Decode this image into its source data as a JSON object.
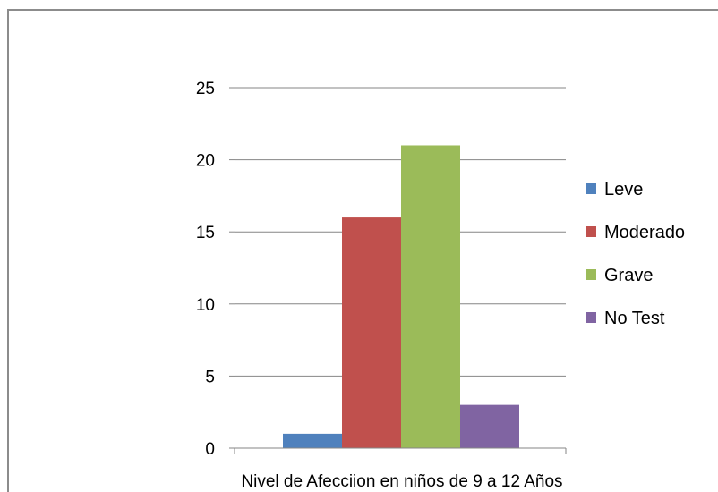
{
  "chart_data": {
    "type": "bar",
    "categories": [
      ""
    ],
    "series": [
      {
        "name": "Leve",
        "values": [
          1
        ],
        "color": "#4F81BD"
      },
      {
        "name": "Moderado",
        "values": [
          16
        ],
        "color": "#C0504D"
      },
      {
        "name": "Grave",
        "values": [
          21
        ],
        "color": "#9BBB59"
      },
      {
        "name": "No Test",
        "values": [
          3
        ],
        "color": "#8064A2"
      }
    ],
    "title": "",
    "xlabel": "Nivel de Afecciion en niños de 9 a 12 Años",
    "ylabel": "",
    "ylim": [
      0,
      25
    ],
    "yticks": [
      0,
      5,
      10,
      15,
      20,
      25
    ],
    "grid": true,
    "legend_position": "right"
  }
}
